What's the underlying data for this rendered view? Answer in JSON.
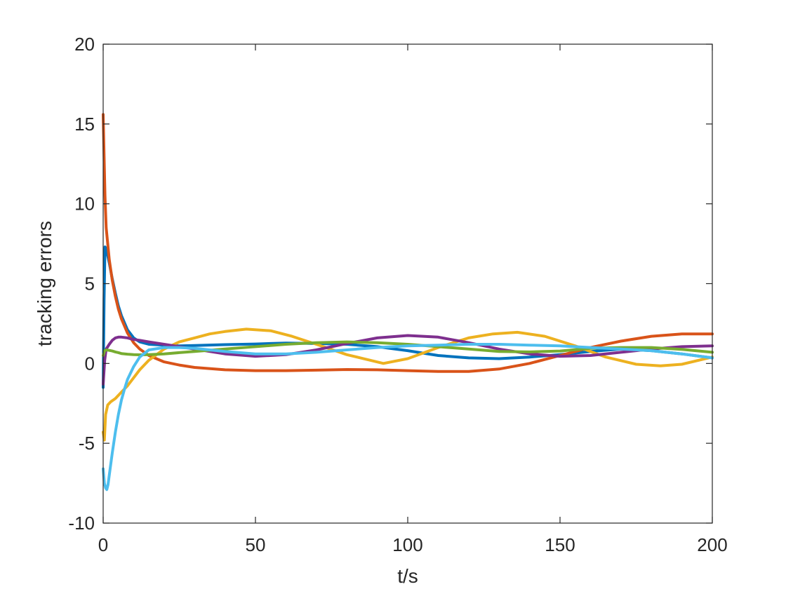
{
  "chart_data": {
    "type": "line",
    "title": "",
    "xlabel": "t/s",
    "ylabel": "tracking errors",
    "xlim": [
      0,
      200
    ],
    "ylim": [
      -10,
      20
    ],
    "xticks": [
      0,
      50,
      100,
      150,
      200
    ],
    "yticks": [
      -10,
      -5,
      0,
      5,
      10,
      15,
      20
    ],
    "xtick_labels": [
      "0",
      "50",
      "100",
      "150",
      "200"
    ],
    "ytick_labels": [
      "-10",
      "-5",
      "0",
      "5",
      "10",
      "15",
      "20"
    ],
    "grid": false,
    "legend": "none",
    "series": [
      {
        "color": "#0072BD",
        "x": [
          0,
          0.3,
          0.6,
          1,
          2,
          3,
          4,
          5,
          6,
          8,
          10,
          12,
          15,
          20,
          25,
          30,
          40,
          50,
          60,
          70,
          80,
          90,
          100,
          110,
          120,
          130,
          140,
          150,
          160,
          170,
          180,
          190,
          200
        ],
        "y": [
          -1.5,
          4,
          7.3,
          7.2,
          6.3,
          5.3,
          4.4,
          3.6,
          3,
          2.1,
          1.6,
          1.35,
          1.2,
          1.15,
          1.1,
          1.12,
          1.18,
          1.22,
          1.28,
          1.25,
          1.2,
          1.05,
          0.8,
          0.5,
          0.35,
          0.3,
          0.4,
          0.55,
          0.75,
          0.9,
          0.8,
          0.6,
          0.35
        ]
      },
      {
        "color": "#D95319",
        "x": [
          0,
          0.3,
          0.6,
          1,
          2,
          3,
          4,
          5,
          6,
          8,
          10,
          12,
          15,
          20,
          25,
          30,
          40,
          50,
          60,
          70,
          80,
          90,
          100,
          110,
          120,
          130,
          140,
          150,
          160,
          170,
          180,
          190,
          200
        ],
        "y": [
          15.6,
          13,
          10.5,
          8.5,
          6.5,
          5.2,
          4.2,
          3.4,
          2.8,
          1.9,
          1.3,
          0.9,
          0.5,
          0.1,
          -0.1,
          -0.25,
          -0.4,
          -0.45,
          -0.45,
          -0.42,
          -0.38,
          -0.4,
          -0.45,
          -0.5,
          -0.5,
          -0.35,
          0,
          0.5,
          1,
          1.4,
          1.7,
          1.85,
          1.85
        ]
      },
      {
        "color": "#EDB120",
        "x": [
          0,
          0.4,
          0.8,
          1.5,
          2.5,
          4,
          6,
          8,
          10,
          12,
          15,
          20,
          25,
          30,
          35,
          40,
          47,
          55,
          62,
          70,
          80,
          92,
          100,
          110,
          120,
          128,
          136,
          145,
          155,
          165,
          175,
          183,
          190,
          200
        ],
        "y": [
          -4.3,
          -4.8,
          -3.2,
          -2.6,
          -2.4,
          -2.2,
          -1.8,
          -1.4,
          -0.9,
          -0.4,
          0.2,
          0.9,
          1.35,
          1.6,
          1.85,
          2,
          2.15,
          2.05,
          1.7,
          1.2,
          0.55,
          0,
          0.3,
          1.0,
          1.6,
          1.85,
          1.95,
          1.7,
          1.1,
          0.4,
          -0.05,
          -0.15,
          -0.05,
          0.4
        ]
      },
      {
        "color": "#7E2F8E",
        "x": [
          0,
          0.5,
          1,
          2,
          3,
          4,
          5,
          6,
          8,
          10,
          12,
          15,
          20,
          25,
          30,
          40,
          50,
          60,
          70,
          80,
          90,
          100,
          110,
          120,
          130,
          140,
          150,
          160,
          170,
          180,
          190,
          200
        ],
        "y": [
          -1.3,
          0.2,
          0.9,
          1.2,
          1.45,
          1.6,
          1.65,
          1.65,
          1.6,
          1.5,
          1.45,
          1.35,
          1.2,
          1.05,
          0.9,
          0.6,
          0.45,
          0.55,
          0.85,
          1.25,
          1.6,
          1.75,
          1.65,
          1.3,
          0.9,
          0.6,
          0.45,
          0.5,
          0.7,
          0.9,
          1.05,
          1.1
        ]
      },
      {
        "color": "#77AC30",
        "x": [
          0,
          0.5,
          1,
          2,
          3,
          4,
          5,
          6,
          8,
          10,
          12,
          15,
          20,
          25,
          30,
          40,
          50,
          60,
          70,
          80,
          90,
          100,
          110,
          120,
          130,
          140,
          150,
          160,
          170,
          180,
          190,
          200
        ],
        "y": [
          0.5,
          0.8,
          0.85,
          0.82,
          0.78,
          0.72,
          0.68,
          0.62,
          0.58,
          0.55,
          0.54,
          0.55,
          0.6,
          0.68,
          0.75,
          0.9,
          1.05,
          1.2,
          1.3,
          1.35,
          1.3,
          1.2,
          1.05,
          0.9,
          0.75,
          0.72,
          0.78,
          0.95,
          1.0,
          1.0,
          0.88,
          0.7
        ]
      },
      {
        "color": "#4DBEEE",
        "x": [
          0,
          0.4,
          0.8,
          1.2,
          1.6,
          2,
          3,
          4,
          5,
          6,
          7,
          8,
          10,
          12,
          15,
          20,
          25,
          30,
          40,
          50,
          60,
          70,
          80,
          90,
          100,
          110,
          120,
          130,
          140,
          150,
          160,
          170,
          180,
          190,
          200
        ],
        "y": [
          -6.6,
          -7.5,
          -7.8,
          -7.9,
          -7.6,
          -7.0,
          -5.6,
          -4.3,
          -3.2,
          -2.3,
          -1.6,
          -1.0,
          -0.2,
          0.4,
          0.85,
          1.0,
          1.0,
          0.95,
          0.75,
          0.6,
          0.6,
          0.7,
          0.85,
          1.0,
          1.1,
          1.15,
          1.2,
          1.2,
          1.15,
          1.1,
          1.0,
          0.9,
          0.8,
          0.6,
          0.35
        ]
      }
    ]
  }
}
